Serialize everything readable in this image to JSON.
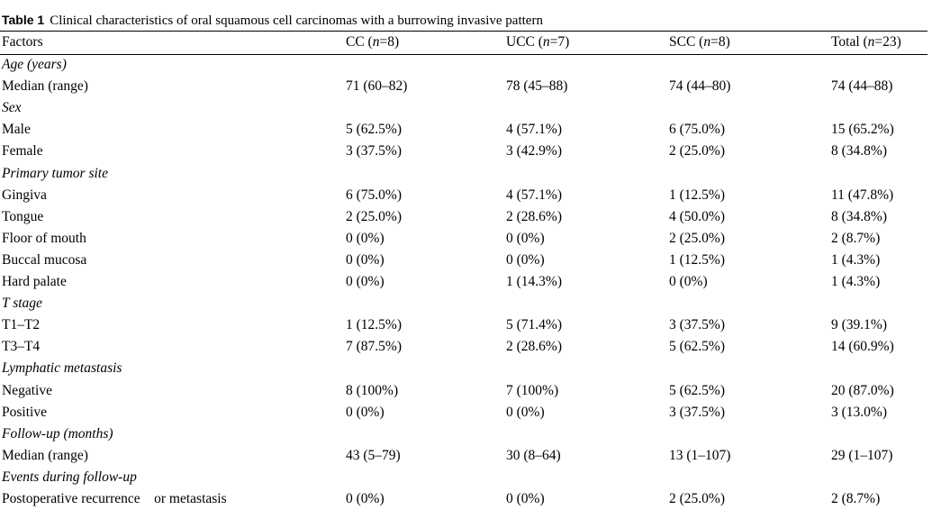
{
  "table": {
    "label": "Table 1",
    "title": "Clinical characteristics of oral squamous cell carcinomas with a burrowing invasive pattern",
    "headers": [
      {
        "pre": "Factors",
        "n": "",
        "post": ""
      },
      {
        "pre": "CC (",
        "n": "n",
        "post": "=8)"
      },
      {
        "pre": "UCC (",
        "n": "n",
        "post": "=7)"
      },
      {
        "pre": "SCC (",
        "n": "n",
        "post": "=8)"
      },
      {
        "pre": "Total (",
        "n": "n",
        "post": "=23)"
      }
    ],
    "rows": [
      {
        "type": "section",
        "cells": [
          "Age (years)",
          "",
          "",
          "",
          ""
        ]
      },
      {
        "type": "data",
        "cells": [
          "Median (range)",
          "71 (60–82)",
          "78 (45–88)",
          "74 (44–80)",
          "74 (44–88)"
        ]
      },
      {
        "type": "section",
        "cells": [
          "Sex",
          "",
          "",
          "",
          ""
        ]
      },
      {
        "type": "data",
        "cells": [
          "Male",
          "5 (62.5%)",
          "4 (57.1%)",
          "6 (75.0%)",
          "15 (65.2%)"
        ]
      },
      {
        "type": "data",
        "cells": [
          "Female",
          "3 (37.5%)",
          "3 (42.9%)",
          "2 (25.0%)",
          "8 (34.8%)"
        ]
      },
      {
        "type": "section",
        "cells": [
          "Primary tumor site",
          "",
          "",
          "",
          ""
        ]
      },
      {
        "type": "data",
        "cells": [
          "Gingiva",
          "6 (75.0%)",
          "4 (57.1%)",
          "1 (12.5%)",
          "11 (47.8%)"
        ]
      },
      {
        "type": "data",
        "cells": [
          "Tongue",
          "2 (25.0%)",
          "2 (28.6%)",
          "4 (50.0%)",
          "8 (34.8%)"
        ]
      },
      {
        "type": "data",
        "cells": [
          "Floor of mouth",
          "0 (0%)",
          "0 (0%)",
          "2 (25.0%)",
          "2 (8.7%)"
        ]
      },
      {
        "type": "data",
        "cells": [
          "Buccal mucosa",
          "0 (0%)",
          "0 (0%)",
          "1 (12.5%)",
          "1 (4.3%)"
        ]
      },
      {
        "type": "data",
        "cells": [
          "Hard palate",
          "0 (0%)",
          "1 (14.3%)",
          "0 (0%)",
          "1 (4.3%)"
        ]
      },
      {
        "type": "section",
        "cells": [
          "T stage",
          "",
          "",
          "",
          ""
        ]
      },
      {
        "type": "data",
        "cells": [
          "T1–T2",
          "1 (12.5%)",
          "5 (71.4%)",
          "3 (37.5%)",
          "9 (39.1%)"
        ]
      },
      {
        "type": "data",
        "cells": [
          "T3–T4",
          "7 (87.5%)",
          "2 (28.6%)",
          "5 (62.5%)",
          "14 (60.9%)"
        ]
      },
      {
        "type": "section",
        "cells": [
          "Lymphatic metastasis",
          "",
          "",
          "",
          ""
        ]
      },
      {
        "type": "data",
        "cells": [
          "Negative",
          "8 (100%)",
          "7 (100%)",
          "5 (62.5%)",
          "20 (87.0%)"
        ]
      },
      {
        "type": "data",
        "cells": [
          "Positive",
          "0 (0%)",
          "0 (0%)",
          "3 (37.5%)",
          "3 (13.0%)"
        ]
      },
      {
        "type": "section",
        "cells": [
          "Follow-up (months)",
          "",
          "",
          "",
          ""
        ]
      },
      {
        "type": "data",
        "cells": [
          "Median (range)",
          "43 (5–79)",
          "30 (8–64)",
          "13 (1–107)",
          "29 (1–107)"
        ]
      },
      {
        "type": "section",
        "cells": [
          "Events during follow-up",
          "",
          "",
          "",
          ""
        ]
      },
      {
        "type": "data",
        "cells": [
          "Postoperative recurrence    or metastasis",
          "0 (0%)",
          "0 (0%)",
          "2 (25.0%)",
          "2 (8.7%)"
        ]
      }
    ]
  }
}
